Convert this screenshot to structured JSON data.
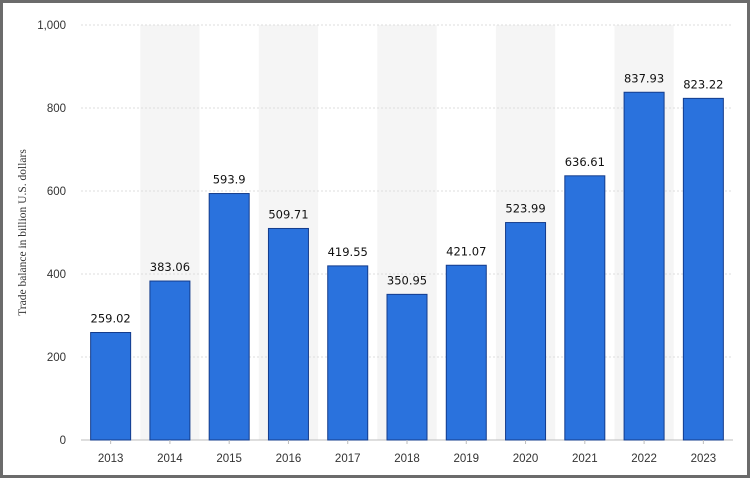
{
  "chart_data": {
    "type": "bar",
    "title": "",
    "xlabel": "",
    "ylabel": "Trade balance in billion U.S. dollars",
    "categories": [
      "2013",
      "2014",
      "2015",
      "2016",
      "2017",
      "2018",
      "2019",
      "2020",
      "2021",
      "2022",
      "2023"
    ],
    "values": [
      259.02,
      383.06,
      593.9,
      509.71,
      419.55,
      350.95,
      421.07,
      523.99,
      636.61,
      837.93,
      823.22
    ],
    "value_labels": [
      "259.02",
      "383.06",
      "593.9",
      "509.71",
      "419.55",
      "350.95",
      "421.07",
      "523.99",
      "636.61",
      "837.93",
      "823.22"
    ],
    "ylim": [
      0,
      1000
    ],
    "yticks": [
      0,
      200,
      400,
      600,
      800,
      1000
    ],
    "ytick_labels": [
      "0",
      "200",
      "400",
      "600",
      "800",
      "1,000"
    ],
    "grid": true,
    "bar_color": "#2a72dd",
    "bar_edge_color": "#143c8c",
    "band_color": "#f5f5f5",
    "grid_color": "#dddddd"
  }
}
